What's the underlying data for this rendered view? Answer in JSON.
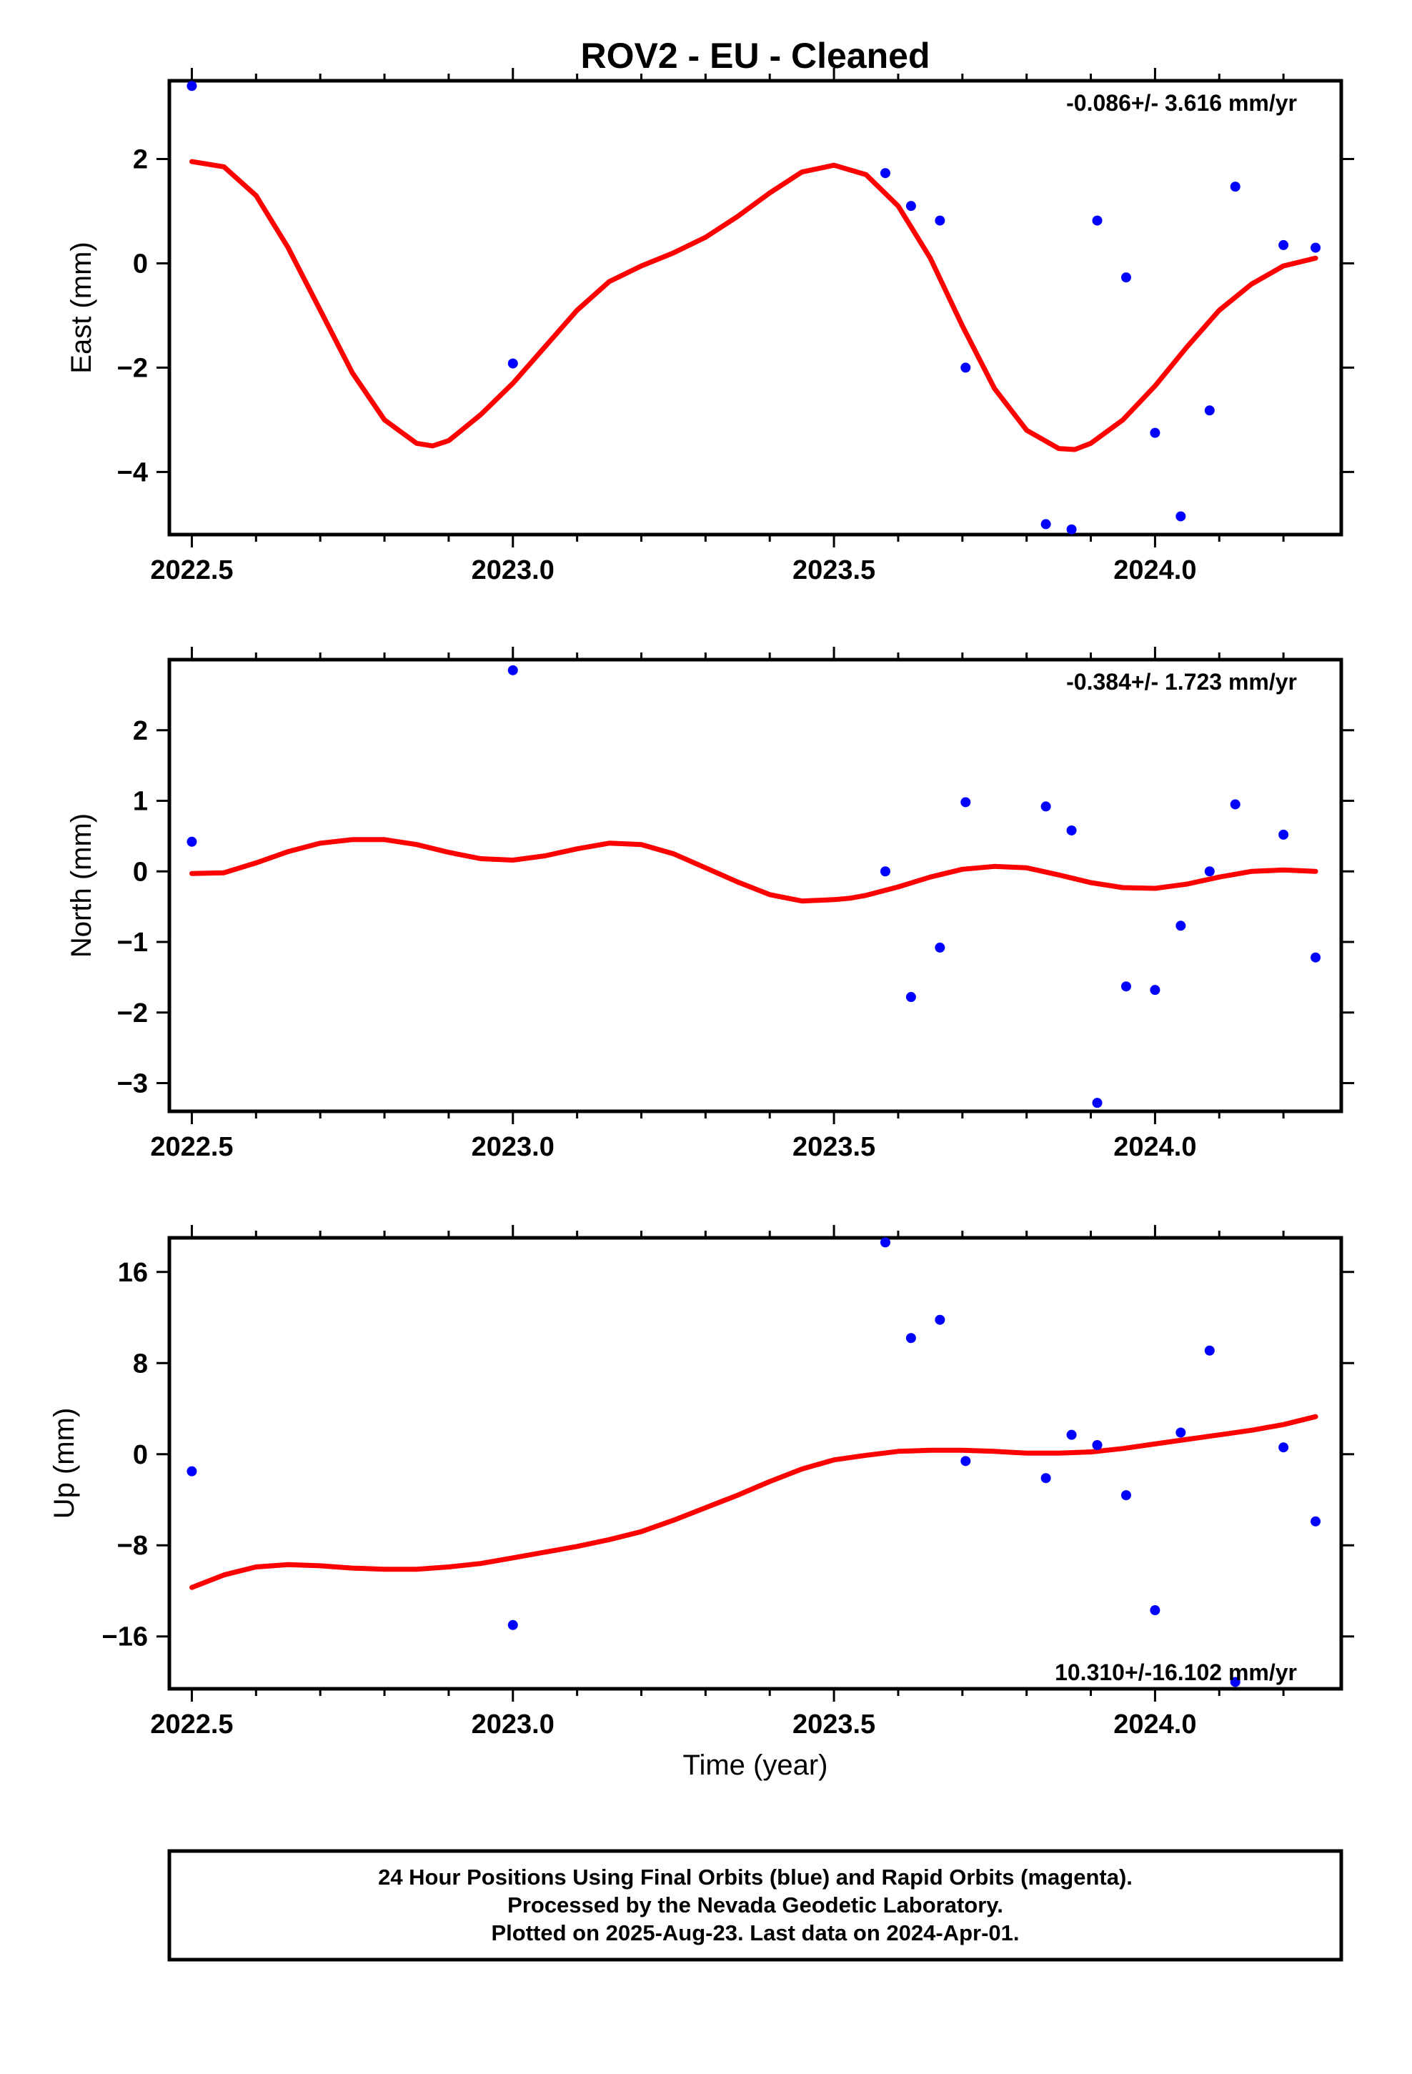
{
  "title": "ROV2  - EU - Cleaned",
  "xlabel": "Time (year)",
  "colors": {
    "points": "#0000ff",
    "fit": "#ff0000",
    "frame": "#000000"
  },
  "footer": {
    "line1": "24 Hour Positions Using Final Orbits (blue) and Rapid Orbits (magenta).",
    "line2": "Processed by the Nevada Geodetic Laboratory.",
    "line3": "Plotted on 2025-Aug-23. Last data on 2024-Apr-01."
  },
  "chart_data": [
    {
      "type": "scatter",
      "ylabel": "East (mm)",
      "rate_text": "-0.086+/- 3.616 mm/yr",
      "rate_position": "top-right",
      "xlim": [
        2022.465,
        2024.29
      ],
      "ylim": [
        -5.2,
        3.5
      ],
      "xticks": [
        2022.5,
        2023.0,
        2023.5,
        2024.0
      ],
      "xtick_labels": [
        "2022.5",
        "2023.0",
        "2023.5",
        "2024.0"
      ],
      "yticks": [
        -4,
        -2,
        0,
        2
      ],
      "ytick_labels": [
        "−4",
        "−2",
        "0",
        "2"
      ],
      "points": {
        "x": [
          2022.5,
          2023.0,
          2023.58,
          2023.62,
          2023.665,
          2023.705,
          2023.83,
          2023.87,
          2023.91,
          2023.955,
          2024.0,
          2024.04,
          2024.085,
          2024.125,
          2024.2,
          2024.25
        ],
        "y": [
          3.4,
          -1.92,
          1.73,
          1.1,
          0.82,
          -2.0,
          -5.0,
          -5.1,
          0.82,
          -0.27,
          -3.25,
          -4.85,
          -2.82,
          1.47,
          0.35,
          0.3
        ]
      },
      "fit": {
        "x": [
          2022.5,
          2022.55,
          2022.6,
          2022.65,
          2022.7,
          2022.75,
          2022.8,
          2022.85,
          2022.875,
          2022.9,
          2022.95,
          2023.0,
          2023.05,
          2023.1,
          2023.15,
          2023.2,
          2023.25,
          2023.3,
          2023.35,
          2023.4,
          2023.45,
          2023.5,
          2023.55,
          2023.6,
          2023.65,
          2023.7,
          2023.75,
          2023.8,
          2023.85,
          2023.875,
          2023.9,
          2023.95,
          2024.0,
          2024.05,
          2024.1,
          2024.15,
          2024.2,
          2024.25
        ],
        "y": [
          1.95,
          1.85,
          1.3,
          0.3,
          -0.9,
          -2.1,
          -3.0,
          -3.45,
          -3.5,
          -3.4,
          -2.9,
          -2.3,
          -1.6,
          -0.9,
          -0.35,
          -0.05,
          0.2,
          0.5,
          0.9,
          1.35,
          1.75,
          1.88,
          1.7,
          1.1,
          0.1,
          -1.2,
          -2.4,
          -3.2,
          -3.55,
          -3.57,
          -3.45,
          -3.0,
          -2.35,
          -1.6,
          -0.9,
          -0.4,
          -0.05,
          0.1
        ]
      }
    },
    {
      "type": "scatter",
      "ylabel": "North (mm)",
      "rate_text": "-0.384+/- 1.723 mm/yr",
      "rate_position": "top-right",
      "xlim": [
        2022.465,
        2024.29
      ],
      "ylim": [
        -3.4,
        3.0
      ],
      "xticks": [
        2022.5,
        2023.0,
        2023.5,
        2024.0
      ],
      "xtick_labels": [
        "2022.5",
        "2023.0",
        "2023.5",
        "2024.0"
      ],
      "yticks": [
        -3,
        -2,
        -1,
        0,
        1,
        2
      ],
      "ytick_labels": [
        "−3",
        "−2",
        "−1",
        "0",
        "1",
        "2"
      ],
      "points": {
        "x": [
          2022.5,
          2023.0,
          2023.58,
          2023.62,
          2023.665,
          2023.705,
          2023.83,
          2023.87,
          2023.91,
          2023.955,
          2024.0,
          2024.04,
          2024.085,
          2024.125,
          2024.2,
          2024.25
        ],
        "y": [
          0.42,
          2.85,
          0.0,
          -1.78,
          -1.08,
          0.98,
          0.92,
          0.58,
          -3.28,
          -1.63,
          -1.68,
          -0.77,
          0.0,
          0.95,
          0.52,
          -1.22
        ]
      },
      "fit": {
        "x": [
          2022.5,
          2022.55,
          2022.6,
          2022.65,
          2022.7,
          2022.75,
          2022.8,
          2022.85,
          2022.9,
          2022.95,
          2023.0,
          2023.05,
          2023.1,
          2023.15,
          2023.2,
          2023.25,
          2023.3,
          2023.35,
          2023.4,
          2023.45,
          2023.5,
          2023.525,
          2023.55,
          2023.6,
          2023.65,
          2023.7,
          2023.75,
          2023.8,
          2023.85,
          2023.9,
          2023.95,
          2024.0,
          2024.05,
          2024.1,
          2024.15,
          2024.2,
          2024.25
        ],
        "y": [
          -0.03,
          -0.02,
          0.12,
          0.28,
          0.4,
          0.45,
          0.45,
          0.38,
          0.27,
          0.18,
          0.16,
          0.22,
          0.32,
          0.4,
          0.38,
          0.25,
          0.05,
          -0.15,
          -0.33,
          -0.42,
          -0.4,
          -0.38,
          -0.34,
          -0.22,
          -0.08,
          0.03,
          0.07,
          0.05,
          -0.05,
          -0.16,
          -0.23,
          -0.24,
          -0.18,
          -0.08,
          0.0,
          0.02,
          0.0
        ]
      }
    },
    {
      "type": "scatter",
      "ylabel": "Up (mm)",
      "rate_text": "10.310+/-16.102 mm/yr",
      "rate_position": "bottom-right",
      "xlim": [
        2022.465,
        2024.29
      ],
      "ylim": [
        -20.6,
        19.0
      ],
      "xticks": [
        2022.5,
        2023.0,
        2023.5,
        2024.0
      ],
      "xtick_labels": [
        "2022.5",
        "2023.0",
        "2023.5",
        "2024.0"
      ],
      "yticks": [
        -16,
        -8,
        0,
        8,
        16
      ],
      "ytick_labels": [
        "−16",
        "−8",
        "0",
        "8",
        "16"
      ],
      "points": {
        "x": [
          2022.5,
          2023.0,
          2023.58,
          2023.62,
          2023.665,
          2023.705,
          2023.83,
          2023.87,
          2023.91,
          2023.955,
          2024.0,
          2024.04,
          2024.085,
          2024.125,
          2024.2,
          2024.25
        ],
        "y": [
          -1.5,
          -15.0,
          18.6,
          10.2,
          11.8,
          -0.6,
          -2.1,
          1.7,
          0.8,
          -3.6,
          -13.7,
          1.9,
          9.1,
          -20.0,
          0.6,
          -5.9
        ]
      },
      "fit": {
        "x": [
          2022.5,
          2022.55,
          2022.6,
          2022.65,
          2022.7,
          2022.75,
          2022.8,
          2022.85,
          2022.9,
          2022.95,
          2023.0,
          2023.05,
          2023.1,
          2023.15,
          2023.2,
          2023.25,
          2023.3,
          2023.35,
          2023.4,
          2023.45,
          2023.5,
          2023.55,
          2023.6,
          2023.65,
          2023.7,
          2023.75,
          2023.8,
          2023.85,
          2023.9,
          2023.95,
          2024.0,
          2024.05,
          2024.1,
          2024.15,
          2024.2,
          2024.25
        ],
        "y": [
          -11.7,
          -10.6,
          -9.9,
          -9.7,
          -9.8,
          -10.0,
          -10.1,
          -10.1,
          -9.9,
          -9.6,
          -9.1,
          -8.6,
          -8.1,
          -7.5,
          -6.8,
          -5.8,
          -4.7,
          -3.6,
          -2.4,
          -1.3,
          -0.5,
          -0.1,
          0.25,
          0.35,
          0.35,
          0.25,
          0.1,
          0.1,
          0.2,
          0.5,
          0.9,
          1.3,
          1.7,
          2.1,
          2.6,
          3.3
        ]
      }
    }
  ]
}
